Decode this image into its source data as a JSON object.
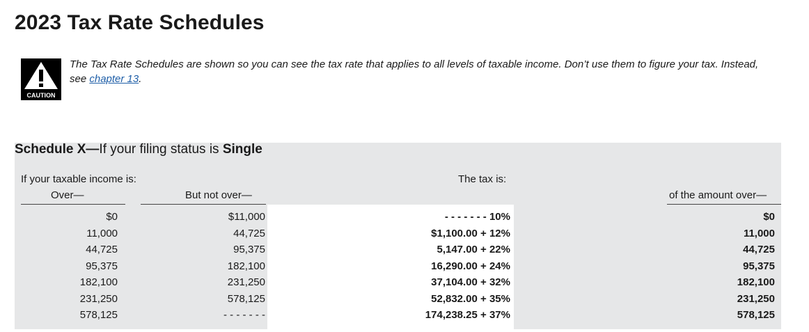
{
  "title": "2023 Tax Rate Schedules",
  "caution": {
    "icon_label": "CAUTION",
    "text_line1": "The Tax Rate Schedules are shown so you can see the tax rate that applies to all levels of taxable income. Don’t use them to figure your tax. Instead,",
    "text_line2_prefix": "see ",
    "link_text": "chapter 13",
    "text_line2_suffix": "."
  },
  "schedule": {
    "title_prefix": "Schedule X—",
    "title_middle": "If your filing status is ",
    "title_status": "Single",
    "header_income": "If your taxable income is:",
    "header_over": "Over—",
    "header_not_over": "But not over—",
    "header_tax": "The tax is:",
    "header_amount_over": "of the amount over—",
    "rows": [
      {
        "over": "$0",
        "not_over": "$11,000",
        "tax": "- - - - - - - 10%",
        "amount_over": "$0"
      },
      {
        "over": "11,000",
        "not_over": "44,725",
        "tax": "$1,100.00 + 12%",
        "amount_over": "11,000"
      },
      {
        "over": "44,725",
        "not_over": "95,375",
        "tax": "5,147.00 + 22%",
        "amount_over": "44,725"
      },
      {
        "over": "95,375",
        "not_over": "182,100",
        "tax": "16,290.00 + 24%",
        "amount_over": "95,375"
      },
      {
        "over": "182,100",
        "not_over": "231,250",
        "tax": "37,104.00 + 32%",
        "amount_over": "182,100"
      },
      {
        "over": "231,250",
        "not_over": "578,125",
        "tax": "52,832.00 + 35%",
        "amount_over": "231,250"
      },
      {
        "over": "578,125",
        "not_over": "- - - - - - -",
        "tax": "174,238.25 + 37%",
        "amount_over": "578,125"
      }
    ]
  }
}
